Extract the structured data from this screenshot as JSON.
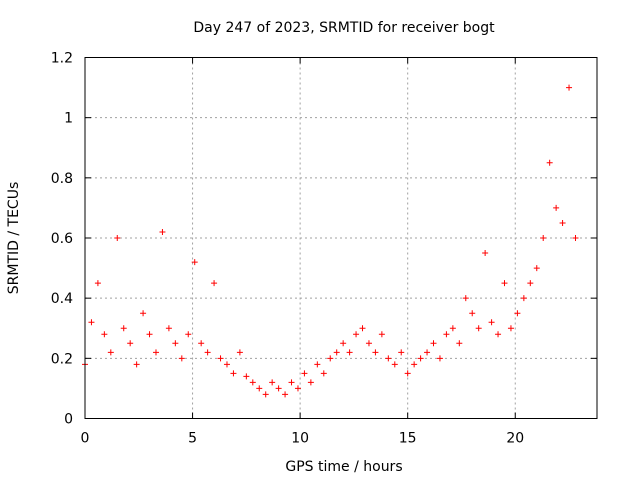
{
  "chart_data": {
    "type": "scatter",
    "title": "Day 247 of 2023, SRMTID for receiver bogt",
    "xlabel": "GPS time / hours",
    "ylabel": "SRMTID / TECUs",
    "xlim": [
      0,
      23.8
    ],
    "ylim": [
      0,
      1.2
    ],
    "xticks": [
      0,
      5,
      10,
      15,
      20
    ],
    "xtick_labels": [
      "0",
      "5",
      "10",
      "15",
      "20"
    ],
    "yticks": [
      0,
      0.2,
      0.4,
      0.6,
      0.8,
      1.0,
      1.2
    ],
    "ytick_labels": [
      "0",
      "0.2",
      "0.4",
      "0.6",
      "0.8",
      "1",
      "1.2"
    ],
    "grid": true,
    "marker": "+",
    "color": "#ff0000",
    "series": [
      {
        "name": "bogt",
        "x": [
          0.0,
          0.3,
          0.6,
          0.9,
          1.2,
          1.5,
          1.8,
          2.1,
          2.4,
          2.7,
          3.0,
          3.3,
          3.6,
          3.9,
          4.2,
          4.5,
          4.8,
          5.1,
          5.4,
          5.7,
          6.0,
          6.3,
          6.6,
          6.9,
          7.2,
          7.5,
          7.8,
          8.1,
          8.4,
          8.7,
          9.0,
          9.3,
          9.6,
          9.9,
          10.2,
          10.5,
          10.8,
          11.1,
          11.4,
          11.7,
          12.0,
          12.3,
          12.6,
          12.9,
          13.2,
          13.5,
          13.8,
          14.1,
          14.4,
          14.7,
          15.0,
          15.3,
          15.6,
          15.9,
          16.2,
          16.5,
          16.8,
          17.1,
          17.4,
          17.7,
          18.0,
          18.3,
          18.6,
          18.9,
          19.2,
          19.5,
          19.8,
          20.1,
          20.4,
          20.7,
          21.0,
          21.3,
          21.6,
          21.9,
          22.2,
          22.5,
          22.8
        ],
        "y": [
          0.18,
          0.32,
          0.45,
          0.28,
          0.22,
          0.6,
          0.3,
          0.25,
          0.18,
          0.35,
          0.28,
          0.22,
          0.62,
          0.3,
          0.25,
          0.2,
          0.28,
          0.52,
          0.25,
          0.22,
          0.45,
          0.2,
          0.18,
          0.15,
          0.22,
          0.14,
          0.12,
          0.1,
          0.08,
          0.12,
          0.1,
          0.08,
          0.12,
          0.1,
          0.15,
          0.12,
          0.18,
          0.15,
          0.2,
          0.22,
          0.25,
          0.22,
          0.28,
          0.3,
          0.25,
          0.22,
          0.28,
          0.2,
          0.18,
          0.22,
          0.15,
          0.18,
          0.2,
          0.22,
          0.25,
          0.2,
          0.28,
          0.3,
          0.25,
          0.4,
          0.35,
          0.3,
          0.55,
          0.32,
          0.28,
          0.45,
          0.3,
          0.35,
          0.4,
          0.45,
          0.5,
          0.6,
          0.85,
          0.7,
          0.65,
          1.1,
          0.6
        ]
      }
    ]
  }
}
